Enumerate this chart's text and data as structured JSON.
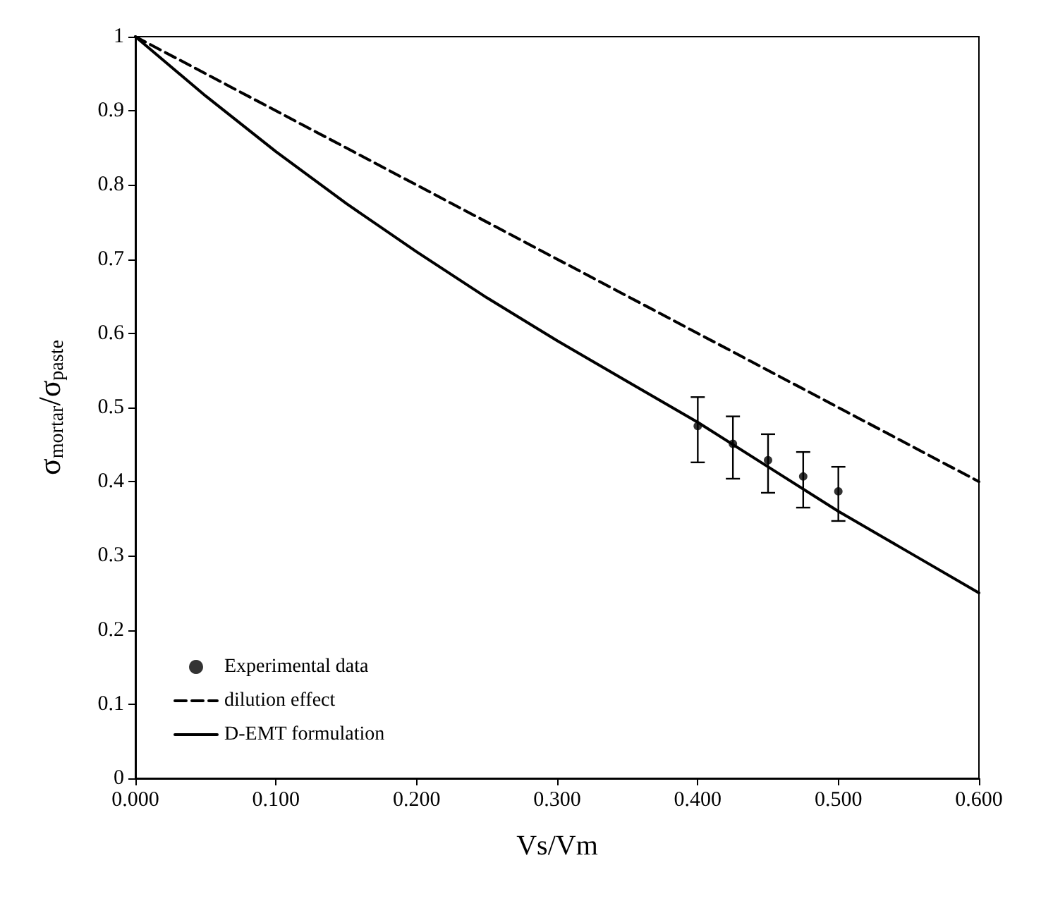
{
  "chart_data": {
    "type": "line",
    "xlabel": "Vs/Vm",
    "ylabel": "σ$_{mortar}$/σ$_{paste}$",
    "xlim": [
      0,
      0.6
    ],
    "xticks": [
      {
        "value": 0,
        "label": "0.000"
      },
      {
        "value": 0.1,
        "label": "0.100"
      },
      {
        "value": 0.2,
        "label": "0.200"
      },
      {
        "value": 0.3,
        "label": "0.300"
      },
      {
        "value": 0.4,
        "label": "0.400"
      },
      {
        "value": 0.5,
        "label": "0.500"
      },
      {
        "value": 0.6,
        "label": "0.600"
      }
    ],
    "ylim": [
      0,
      1
    ],
    "yticks": [
      0,
      0.1,
      0.2,
      0.3,
      0.4,
      0.5,
      0.6,
      0.7,
      0.8,
      0.9,
      1
    ],
    "grid": false,
    "legend": "bottom left",
    "series": [
      {
        "name": "Experimental data",
        "type": "scatter",
        "marker": "circle",
        "color": "#000000",
        "x": [
          0.4,
          0.425,
          0.45,
          0.475,
          0.5
        ],
        "values": [
          0.475,
          0.451,
          0.429,
          0.407,
          0.387
        ],
        "errors": [
          [
            0.426,
            0.514
          ],
          [
            0.404,
            0.488
          ],
          [
            0.385,
            0.464
          ],
          [
            0.365,
            0.44
          ],
          [
            0.347,
            0.42
          ]
        ]
      },
      {
        "name": "dilution effect",
        "line_style": "dashed",
        "marker": "none",
        "color": "#000000",
        "x": [
          0,
          0.6
        ],
        "values": [
          1,
          0.4
        ]
      },
      {
        "name": "D-EMT formulation",
        "line_style": "solid",
        "marker": "none",
        "color": "#000000",
        "x": [
          0,
          0.05,
          0.1,
          0.15,
          0.2,
          0.25,
          0.3,
          0.35,
          0.4,
          0.45,
          0.5,
          0.55,
          0.6
        ],
        "values": [
          1,
          0.92,
          0.845,
          0.775,
          0.71,
          0.648,
          0.59,
          0.535,
          0.48,
          0.42,
          0.36,
          0.305,
          0.25
        ]
      }
    ]
  }
}
